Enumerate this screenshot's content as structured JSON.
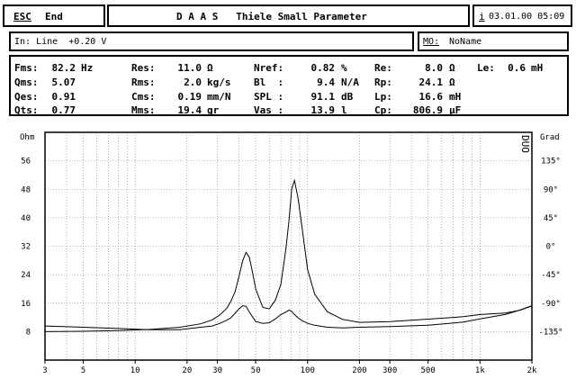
{
  "header": {
    "esc_label": "ESC",
    "end_label": "End",
    "title": "D A A S   Thiele Small Parameter",
    "info_label": "i",
    "datetime": "03.01.00 05:09"
  },
  "status": {
    "input_text": "In: Line  +0.20 V",
    "model_label": "MO:",
    "model_name": "NoName"
  },
  "params": {
    "col1": [
      {
        "label": "Fms:",
        "value": "82.2",
        "unit": "Hz"
      },
      {
        "label": "Qms:",
        "value": "5.07",
        "unit": ""
      },
      {
        "label": "Qes:",
        "value": "0.91",
        "unit": ""
      },
      {
        "label": "Qts:",
        "value": "0.77",
        "unit": ""
      }
    ],
    "col2": [
      {
        "label": "Res:",
        "value": "11.0",
        "unit": "Ω"
      },
      {
        "label": "Rms:",
        "value": "2.0",
        "unit": "kg/s"
      },
      {
        "label": "Cms:",
        "value": "0.19",
        "unit": "mm/N"
      },
      {
        "label": "Mms:",
        "value": "19.4",
        "unit": "gr"
      }
    ],
    "col3": [
      {
        "label": "Nref:",
        "value": "0.82",
        "unit": "%"
      },
      {
        "label": "Bl  :",
        "value": "9.4",
        "unit": "N/A"
      },
      {
        "label": "SPL :",
        "value": "91.1",
        "unit": "dB"
      },
      {
        "label": "Vas :",
        "value": "13.9",
        "unit": "l"
      }
    ],
    "col4": [
      {
        "label": "Re:",
        "value": "8.0",
        "unit": "Ω"
      },
      {
        "label": "Rp:",
        "value": "24.1",
        "unit": "Ω"
      },
      {
        "label": "Lp:",
        "value": "16.6",
        "unit": "mH"
      },
      {
        "label": "Cp:",
        "value": "806.9",
        "unit": "µF"
      }
    ],
    "le": {
      "label": "Le:",
      "value": "0.6",
      "unit": "mH"
    }
  },
  "chart_data": {
    "type": "line",
    "x_scale": "log",
    "xlim": [
      3,
      2000
    ],
    "x_ticks": [
      3,
      5,
      10,
      20,
      30,
      50,
      100,
      200,
      300,
      500,
      1000,
      2000
    ],
    "x_tick_labels": [
      "3",
      "5",
      "10",
      "20",
      "30",
      "50",
      "100",
      "200",
      "300",
      "500",
      "1k",
      "2k"
    ],
    "ylim_left": [
      0,
      64
    ],
    "left_unit": "Ohm",
    "left_ticks": [
      8,
      16,
      24,
      32,
      40,
      48,
      56
    ],
    "ylim_right": [
      -180,
      180
    ],
    "right_unit": "Grad",
    "right_ticks": [
      -135,
      -90,
      -45,
      0,
      45,
      90,
      135
    ],
    "right_tick_labels": [
      "-135°",
      "-90°",
      "-45°",
      "0°",
      "45°",
      "90°",
      "135°"
    ],
    "corner_label": "DUO",
    "grid": true,
    "series": [
      {
        "axis": "left",
        "x": [
          3,
          5,
          8,
          12,
          18,
          24,
          28,
          31,
          34,
          36,
          38,
          40,
          42,
          44,
          46,
          48,
          50,
          55,
          60,
          65,
          70,
          75,
          78,
          81,
          84,
          88,
          92,
          100,
          110,
          130,
          160,
          200,
          300,
          500,
          800,
          1000,
          1400,
          1700,
          2000
        ],
        "y": [
          8.0,
          8.1,
          8.3,
          8.6,
          9.2,
          10.2,
          11.3,
          12.7,
          14.6,
          16.6,
          19.2,
          23.5,
          27.9,
          30.3,
          28.8,
          24.5,
          20.0,
          14.8,
          14.4,
          16.8,
          21.3,
          31.5,
          39.2,
          48.2,
          50.5,
          45.6,
          38.8,
          25.4,
          18.5,
          13.6,
          11.4,
          10.6,
          10.8,
          11.5,
          12.2,
          12.8,
          13.2,
          14.0,
          15.2
        ]
      },
      {
        "axis": "right",
        "x": [
          3,
          5,
          8,
          12,
          18,
          24,
          28,
          31,
          34,
          36,
          38,
          40,
          42,
          44,
          46,
          48,
          50,
          55,
          60,
          65,
          70,
          75,
          78,
          81,
          84,
          88,
          92,
          100,
          110,
          130,
          160,
          200,
          300,
          500,
          800,
          1000,
          1400,
          1700,
          2000
        ],
        "y": [
          -126,
          -128,
          -130,
          -132,
          -132,
          -128,
          -126,
          -122,
          -117,
          -113,
          -106,
          -99,
          -94,
          -95,
          -104,
          -112,
          -119,
          -122,
          -121,
          -115,
          -108,
          -104,
          -101,
          -103,
          -108,
          -113,
          -117,
          -122,
          -125,
          -128,
          -129,
          -128,
          -127,
          -125,
          -120,
          -115,
          -108,
          -101,
          -94
        ]
      }
    ]
  }
}
